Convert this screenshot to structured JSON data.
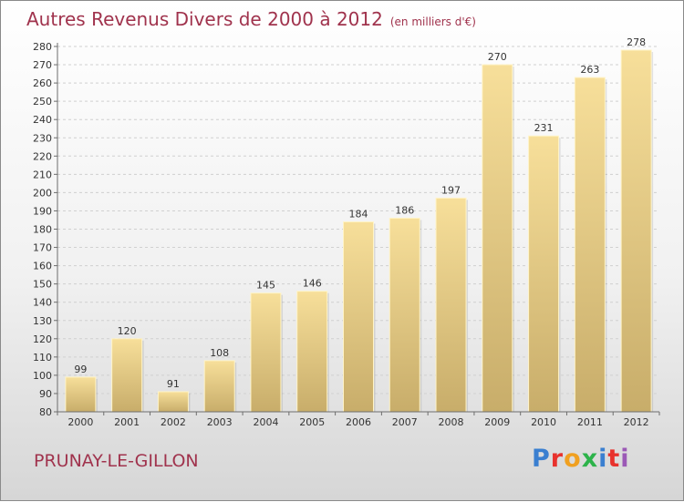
{
  "header": {
    "title": "Autres Revenus Divers de 2000 à 2012",
    "unit": "(en milliers d'€)"
  },
  "footer": {
    "location": "PRUNAY-LE-GILLON",
    "brand": "Proxiti",
    "brand_colors": [
      "#3a7fd0",
      "#e8322d",
      "#f0a020",
      "#2db34a",
      "#3a7fd0",
      "#e8322d",
      "#9b59b6"
    ]
  },
  "colors": {
    "title": "#a0334d",
    "bar_light": "#f7df9a",
    "bar_dark": "#c8ad6a",
    "bar_edge": "#fff4c8",
    "grid": "#d0d0d0",
    "axis": "#6d6d6d"
  },
  "chart_data": {
    "type": "bar",
    "categories": [
      "2000",
      "2001",
      "2002",
      "2003",
      "2004",
      "2005",
      "2006",
      "2007",
      "2008",
      "2009",
      "2010",
      "2011",
      "2012"
    ],
    "values": [
      99,
      120,
      91,
      108,
      145,
      146,
      184,
      186,
      197,
      270,
      231,
      263,
      278
    ],
    "data_labels": [
      "99",
      "120",
      "91",
      "108",
      "145",
      "146",
      "184",
      "186",
      "197",
      "270",
      "231",
      "263",
      "278"
    ],
    "y_ticks": [
      "80",
      "90",
      "100",
      "110",
      "120",
      "130",
      "140",
      "150",
      "160",
      "170",
      "180",
      "190",
      "200",
      "210",
      "220",
      "230",
      "240",
      "250",
      "260",
      "270",
      "280"
    ],
    "ylim": [
      80,
      280
    ],
    "title": "Autres Revenus Divers de 2000 à 2012",
    "xlabel": "",
    "ylabel": "",
    "grid": true
  }
}
